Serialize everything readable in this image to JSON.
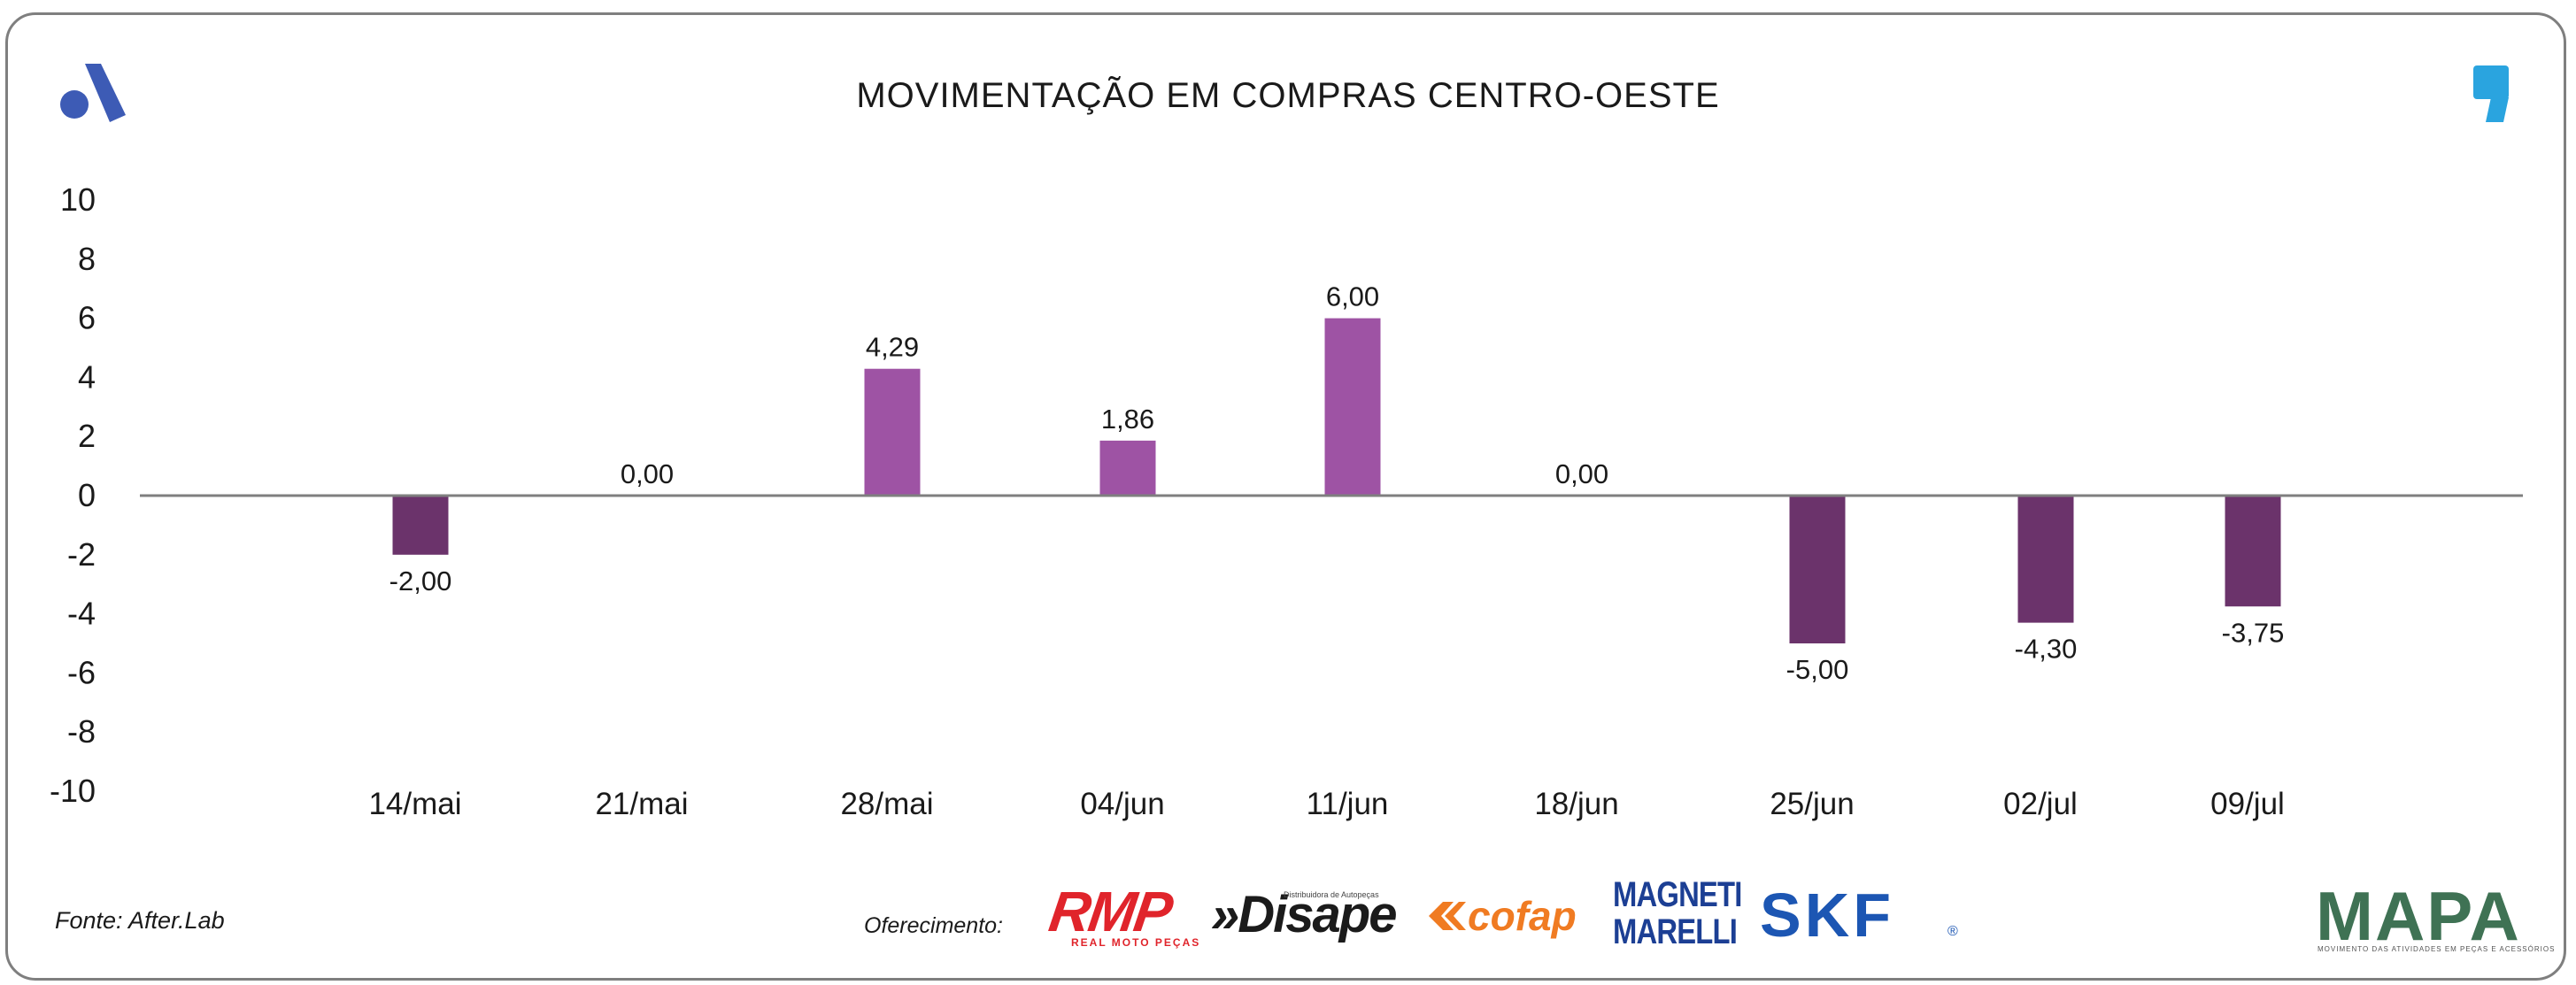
{
  "title": "MOVIMENTAÇÃO EM COMPRAS CENTRO-OESTE",
  "source": "Fonte: After.Lab",
  "sponsor_label": "Oferecimento:",
  "sponsors": {
    "rmp": "RMP",
    "rmp_sub": "REAL MOTO PEÇAS",
    "disape": "»Disape",
    "disape_sub": "Distribuidora de Autopeças",
    "cofap": "cofap",
    "magneti_line1": "MAGNETI",
    "magneti_line2": "MARELLI",
    "skf": "SKF",
    "skf_reg": "®"
  },
  "mapa": {
    "name": "MAPA",
    "tagline": "MOVIMENTO DAS ATIVIDADES EM PEÇAS E ACESSÓRIOS"
  },
  "icons": {
    "left": "brand-a-icon",
    "right": "quote-mark-icon"
  },
  "colors": {
    "positive": "#9e53a4",
    "negative": "#6b336b",
    "axis": "#7f7f7f",
    "brand_blue": "#3d5bb5",
    "quote_blue": "#2aa4df"
  },
  "chart_data": {
    "type": "bar",
    "title": "MOVIMENTAÇÃO EM COMPRAS CENTRO-OESTE",
    "categories": [
      "14/mai",
      "21/mai",
      "28/mai",
      "04/jun",
      "11/jun",
      "18/jun",
      "25/jun",
      "02/jul",
      "09/jul"
    ],
    "values": [
      -2.0,
      0.0,
      4.29,
      1.86,
      6.0,
      0.0,
      -5.0,
      -4.3,
      -3.75
    ],
    "value_labels": [
      "-2,00",
      "0,00",
      "4,29",
      "1,86",
      "6,00",
      "0,00",
      "-5,00",
      "-4,30",
      "-3,75"
    ],
    "yticks": [
      10,
      8,
      6,
      4,
      2,
      0,
      -2,
      -4,
      -6,
      -8,
      -10
    ],
    "ytick_labels": [
      "10",
      "8",
      "6",
      "4",
      "2",
      "0",
      "-2",
      "-4",
      "-6",
      "-8",
      "-10"
    ],
    "ylim": [
      -10,
      10
    ],
    "xlabel": "",
    "ylabel": "",
    "grid": false,
    "legend": "none"
  }
}
